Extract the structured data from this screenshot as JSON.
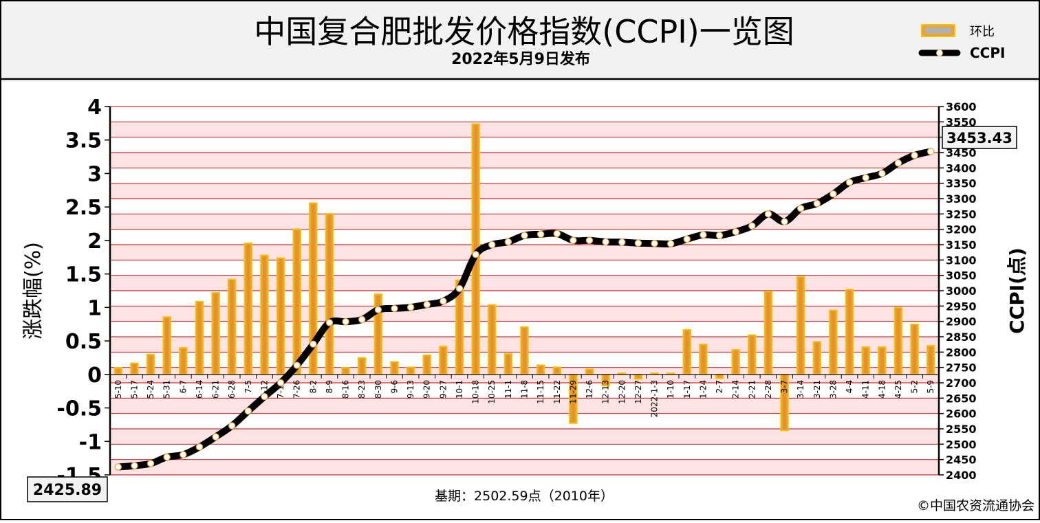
{
  "header": {
    "title": "中国复合肥批发价格指数(CCPI)一览图",
    "subtitle": "2022年5月9日发布"
  },
  "legend": {
    "bar_label": "环比",
    "line_label": "CCPI"
  },
  "footer": {
    "base_text": "基期：2502.59点（2010年）",
    "copyright": "©中国农资流通协会"
  },
  "callouts": {
    "end_value": "3453.43",
    "start_value": "2425.89"
  },
  "colors": {
    "bar_fill": "#f0a030",
    "bar_edge": "#f2c40a",
    "line": "#000000",
    "marker": "#ffffff",
    "marker_dot": "#f0a030",
    "band_pink": "#fde3e3",
    "grid_red": "#c00000"
  },
  "chart_data": {
    "type": "bar",
    "categories": [
      "5-10",
      "5-17",
      "5-24",
      "5-31",
      "6-7",
      "6-14",
      "6-21",
      "6-28",
      "7-5",
      "7-12",
      "7-19",
      "7-26",
      "8-2",
      "8-9",
      "8-16",
      "8-23",
      "8-30",
      "9-6",
      "9-13",
      "9-20",
      "9-27",
      "10-1",
      "10-18",
      "10-25",
      "11-1",
      "11-8",
      "11-15",
      "11-22",
      "11-29",
      "12-6",
      "12-13",
      "12-20",
      "12-27",
      "2022-1-3",
      "1-10",
      "1-17",
      "1-24",
      "2-7",
      "2-14",
      "2-21",
      "2-28",
      "3-7",
      "3-14",
      "3-21",
      "3-28",
      "4-4",
      "4-11",
      "4-18",
      "4-25",
      "5-2",
      "5-9"
    ],
    "series": [
      {
        "name": "环比",
        "axis": "left",
        "type": "bar",
        "values": [
          0.1,
          0.17,
          0.3,
          0.86,
          0.4,
          1.09,
          1.22,
          1.42,
          1.96,
          1.78,
          1.74,
          2.17,
          2.56,
          2.4,
          0.1,
          0.25,
          1.2,
          0.19,
          0.11,
          0.29,
          0.42,
          1.41,
          3.74,
          1.04,
          0.31,
          0.71,
          0.14,
          0.11,
          -0.73,
          0.08,
          -0.17,
          0.02,
          -0.07,
          0.02,
          0.02,
          0.67,
          0.45,
          -0.06,
          0.37,
          0.59,
          1.24,
          -0.84,
          1.46,
          0.49,
          0.96,
          1.27,
          0.41,
          0.41,
          1.0,
          0.75,
          0.43
        ]
      },
      {
        "name": "CCPI",
        "axis": "right",
        "type": "line",
        "values": [
          2425.89,
          2430,
          2437,
          2458,
          2466,
          2491,
          2524,
          2560,
          2608,
          2655,
          2700,
          2757,
          2826,
          2896,
          2899,
          2906,
          2938,
          2942,
          2946,
          2955,
          2966,
          3007,
          3118,
          3150,
          3159,
          3180,
          3184,
          3186,
          3164,
          3164,
          3159,
          3158,
          3155,
          3154,
          3153,
          3168,
          3182,
          3180,
          3192,
          3211,
          3250,
          3225,
          3268,
          3284,
          3315,
          3353,
          3368,
          3382,
          3416,
          3441,
          3453.43
        ]
      }
    ],
    "y_left": {
      "label": "涨跌幅(%)",
      "ylim": [
        -1.5,
        4
      ],
      "ticks": [
        "4",
        "3.5",
        "3",
        "2.5",
        "2",
        "1.5",
        "1",
        "0.5",
        "0",
        "-0.5",
        "-1",
        "-1.5"
      ]
    },
    "y_right": {
      "label": "CCPI(点)",
      "ylim": [
        2400,
        3600
      ],
      "ticks": [
        "3600",
        "3550",
        "3500",
        "3450",
        "3400",
        "3350",
        "3300",
        "3250",
        "3200",
        "3150",
        "3100",
        "3050",
        "3000",
        "2950",
        "2900",
        "2850",
        "2800",
        "2750",
        "2700",
        "2650",
        "2600",
        "2550",
        "2500",
        "2450",
        "2400"
      ]
    },
    "legend_position": "top-right",
    "grid": true
  }
}
